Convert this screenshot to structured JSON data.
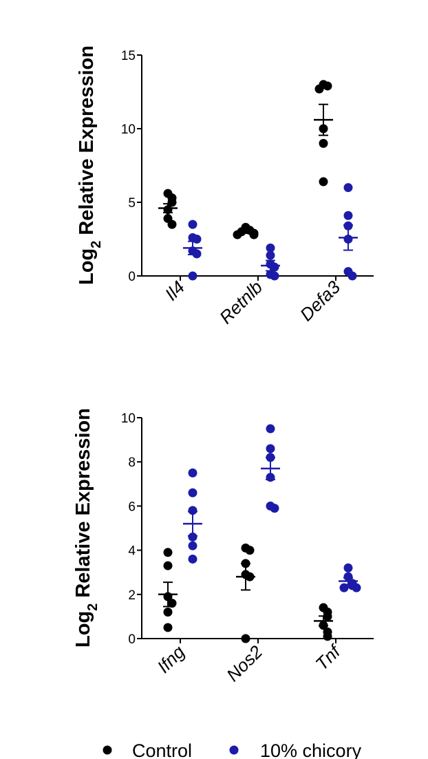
{
  "chart_data": [
    {
      "type": "scatter",
      "ylabel_main": "Log",
      "ylabel_sub": "2",
      "ylabel_rest": " Relative Expression",
      "ylim": [
        0,
        15
      ],
      "yticks": [
        0,
        5,
        10,
        15
      ],
      "categories": [
        "Il4",
        "Retnlb",
        "Defa3"
      ],
      "series": [
        {
          "name": "Control",
          "color": "#000000",
          "points": [
            [
              5.6,
              5.3,
              5.0,
              4.5,
              3.9,
              3.5
            ],
            [
              3.3,
              3.1,
              3.0,
              2.9,
              2.8,
              2.8
            ],
            [
              13.0,
              12.9,
              12.7,
              10.0,
              9.0,
              6.4
            ]
          ],
          "mean": [
            4.6,
            3.0,
            10.6
          ],
          "sem": [
            0.3,
            0.1,
            1.05
          ]
        },
        {
          "name": "10% chicory",
          "color": "#1c1ca8",
          "points": [
            [
              3.5,
              2.6,
              2.5,
              1.7,
              1.5,
              0.0
            ],
            [
              1.9,
              1.4,
              0.8,
              0.6,
              0.1,
              0.0
            ],
            [
              6.0,
              4.1,
              3.4,
              2.5,
              0.3,
              0.0
            ]
          ],
          "mean": [
            1.9,
            0.7,
            2.6
          ],
          "sem": [
            0.45,
            0.35,
            0.85
          ]
        }
      ]
    },
    {
      "type": "scatter",
      "ylabel_main": "Log",
      "ylabel_sub": "2",
      "ylabel_rest": " Relative Expression",
      "ylim": [
        0,
        10
      ],
      "yticks": [
        0,
        2,
        4,
        6,
        8,
        10
      ],
      "categories": [
        "Ifng",
        "Nos2",
        "Tnf"
      ],
      "series": [
        {
          "name": "Control",
          "color": "#000000",
          "points": [
            [
              3.9,
              3.3,
              1.9,
              1.6,
              1.2,
              0.5
            ],
            [
              4.1,
              4.0,
              3.4,
              2.9,
              2.8,
              0.0
            ],
            [
              1.4,
              1.2,
              1.0,
              0.6,
              0.3,
              0.1
            ]
          ],
          "mean": [
            2.0,
            2.8,
            0.8
          ],
          "sem": [
            0.55,
            0.6,
            0.22
          ]
        },
        {
          "name": "10% chicory",
          "color": "#1c1ca8",
          "points": [
            [
              7.5,
              6.6,
              5.8,
              4.6,
              4.2,
              3.6
            ],
            [
              9.5,
              8.6,
              8.2,
              7.3,
              6.0,
              5.9
            ],
            [
              3.2,
              2.8,
              2.5,
              2.4,
              2.3,
              2.3
            ]
          ],
          "mean": [
            5.2,
            7.7,
            2.6
          ],
          "sem": [
            0.55,
            0.5,
            0.15
          ]
        }
      ]
    }
  ],
  "legend": {
    "placement": "bottom",
    "items": [
      {
        "label": "Control",
        "color": "#000000"
      },
      {
        "label": "10% chicory",
        "color": "#1c1ca8"
      }
    ]
  }
}
